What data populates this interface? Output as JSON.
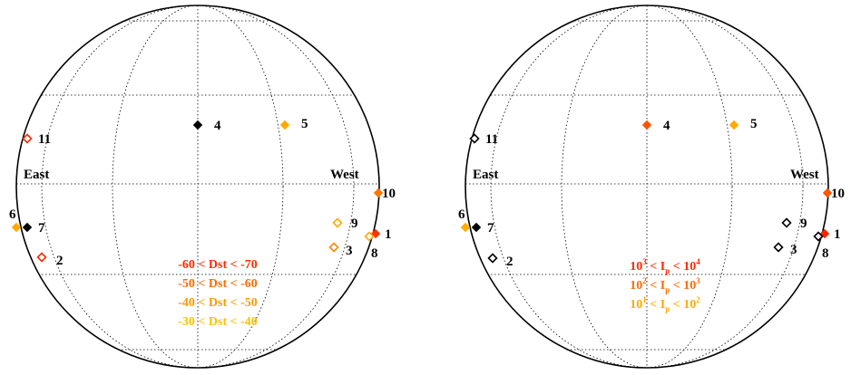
{
  "panels": [
    {
      "id": "dst",
      "east_label": "East",
      "west_label": "West",
      "legend": [
        {
          "text": "-60 < Dst < -70",
          "color": "#ff2a00"
        },
        {
          "text": "-50 < Dst < -60",
          "color": "#ff6a00"
        },
        {
          "text": "-40 < Dst < -50",
          "color": "#ff9a00"
        },
        {
          "text": "-30 < Dst < -40",
          "color": "#ffc000"
        }
      ],
      "events": [
        {
          "label": "1",
          "style": "filled",
          "color": "#ff3300"
        },
        {
          "label": "2",
          "style": "open",
          "color": "#ff2a00"
        },
        {
          "label": "3",
          "style": "open",
          "color": "#ff8800"
        },
        {
          "label": "4",
          "style": "filled",
          "color": "#000000"
        },
        {
          "label": "5",
          "style": "filled",
          "color": "#ffaa00"
        },
        {
          "label": "6",
          "style": "filled",
          "color": "#ffaa00"
        },
        {
          "label": "7",
          "style": "filled",
          "color": "#000000"
        },
        {
          "label": "8",
          "style": "open",
          "color": "#ffaa00"
        },
        {
          "label": "9",
          "style": "open",
          "color": "#ffaa00"
        },
        {
          "label": "10",
          "style": "filled",
          "color": "#ff7700"
        },
        {
          "label": "11",
          "style": "open",
          "color": "#ff2a00"
        }
      ]
    },
    {
      "id": "ip",
      "east_label": "East",
      "west_label": "West",
      "legend": [
        {
          "base": "10",
          "exp1": "3",
          "mid": " < I",
          "sub": "p",
          "lt": " < 10",
          "exp2": "4",
          "color": "#ff2a00"
        },
        {
          "base": "10",
          "exp1": "2",
          "mid": " < I",
          "sub": "p",
          "lt": " < 10",
          "exp2": "3",
          "color": "#ff6a00"
        },
        {
          "base": "10",
          "exp1": "1",
          "mid": " < I",
          "sub": "p",
          "lt": " < 10",
          "exp2": "2",
          "color": "#ffaa00"
        }
      ],
      "events": [
        {
          "label": "1",
          "style": "filled",
          "color": "#ff2200"
        },
        {
          "label": "2",
          "style": "open",
          "color": "#000000"
        },
        {
          "label": "3",
          "style": "open",
          "color": "#000000"
        },
        {
          "label": "4",
          "style": "filled",
          "color": "#ff5500"
        },
        {
          "label": "5",
          "style": "filled",
          "color": "#ffaa00"
        },
        {
          "label": "6",
          "style": "filled",
          "color": "#ffaa00"
        },
        {
          "label": "7",
          "style": "filled",
          "color": "#000000"
        },
        {
          "label": "8",
          "style": "open",
          "color": "#000000"
        },
        {
          "label": "9",
          "style": "open",
          "color": "#000000"
        },
        {
          "label": "10",
          "style": "filled",
          "color": "#ff5500"
        },
        {
          "label": "11",
          "style": "open",
          "color": "#000000"
        }
      ]
    }
  ]
}
